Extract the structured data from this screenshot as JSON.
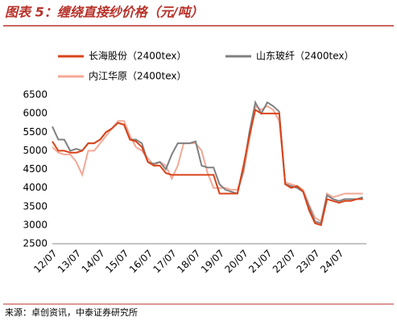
{
  "chart_data": {
    "type": "line",
    "title": "图表 5：缠绕直接纱价格（元/吨）",
    "source": "来源：卓创资讯，中泰证券研究所",
    "categories": [
      "12/07",
      null,
      null,
      null,
      "13/07",
      null,
      null,
      null,
      "14/07",
      null,
      null,
      null,
      "15/07",
      null,
      null,
      null,
      "16/07",
      null,
      null,
      null,
      "17/07",
      null,
      null,
      null,
      "18/07",
      null,
      null,
      null,
      "19/07",
      null,
      null,
      null,
      "20/07",
      null,
      null,
      null,
      "21/07",
      null,
      null,
      null,
      "22/07",
      null,
      null,
      null,
      "23/07",
      null,
      null,
      null,
      "24/07",
      null,
      null,
      null,
      null
    ],
    "series": [
      {
        "name": "长海股份（2400tex）",
        "color": "#d9441a",
        "values": [
          5250,
          5000,
          5000,
          4950,
          4950,
          5000,
          5200,
          5200,
          5300,
          5500,
          5600,
          5750,
          5700,
          5300,
          5250,
          5100,
          4700,
          4600,
          4600,
          4400,
          4350,
          4350,
          4350,
          4350,
          4350,
          4350,
          4350,
          4350,
          3850,
          3850,
          3850,
          3850,
          4600,
          5400,
          6100,
          6000,
          6000,
          6000,
          6000,
          4100,
          4000,
          4050,
          3900,
          3400,
          3050,
          3000,
          3700,
          3650,
          3600,
          3650,
          3650,
          3700,
          3700
        ]
      },
      {
        "name": "山东玻纤（2400tex）",
        "color": "#808080",
        "values": [
          5650,
          5300,
          5300,
          5000,
          5050,
          5000,
          5200,
          5200,
          5300,
          5500,
          5600,
          5750,
          5700,
          5300,
          5300,
          5200,
          4700,
          4650,
          4700,
          4500,
          4900,
          5200,
          5200,
          5200,
          5250,
          4600,
          4550,
          4550,
          4100,
          3950,
          3900,
          3850,
          4500,
          5500,
          6300,
          6000,
          6300,
          6200,
          6050,
          4100,
          4050,
          4000,
          3900,
          3500,
          3100,
          3050,
          3800,
          3700,
          3650,
          3700,
          3700,
          3700,
          3750
        ]
      },
      {
        "name": "内江华原（2400tex）",
        "color": "#f4a896",
        "values": [
          5100,
          4950,
          4900,
          4900,
          4700,
          4350,
          5000,
          5000,
          5200,
          5400,
          5600,
          5800,
          5800,
          5400,
          5100,
          5000,
          4800,
          4600,
          4700,
          4600,
          4250,
          4600,
          5200,
          5200,
          5200,
          5000,
          4400,
          4000,
          4000,
          4000,
          3950,
          3950,
          4400,
          5300,
          6200,
          6100,
          6200,
          6100,
          5800,
          4150,
          4100,
          4050,
          3950,
          3550,
          3200,
          3100,
          3850,
          3750,
          3800,
          3850,
          3850,
          3850,
          3850
        ]
      }
    ],
    "ylim": [
      2500,
      6500
    ],
    "yticks": [
      2500,
      3000,
      3500,
      4000,
      4500,
      5000,
      5500,
      6000,
      6500
    ]
  }
}
